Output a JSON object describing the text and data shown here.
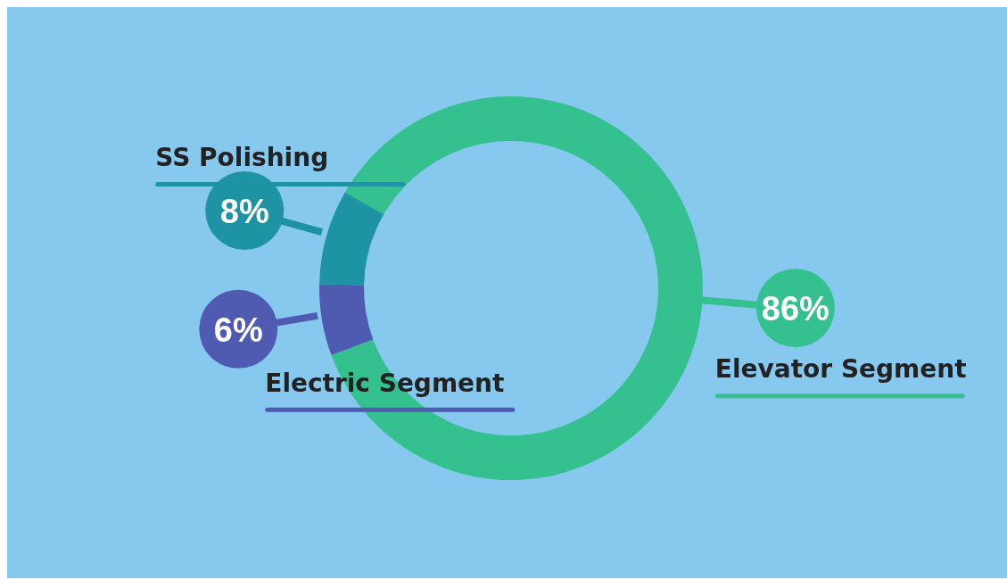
{
  "chart_data": {
    "type": "donut",
    "categories": [
      "Elevator Segment",
      "Electric Segment",
      "SS Polishing"
    ],
    "values": [
      86,
      6,
      8
    ],
    "value_labels": [
      "86%",
      "6%",
      "8%"
    ],
    "colors": [
      "#34c08f",
      "#4f5bb0",
      "#1e93a3"
    ]
  }
}
